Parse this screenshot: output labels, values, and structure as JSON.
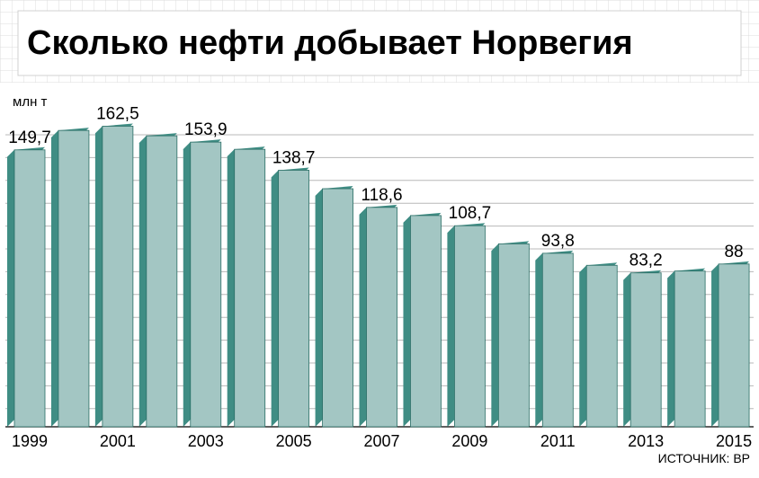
{
  "title": "Сколько нефти добывает Норвегия",
  "unit_label": "млн т",
  "source": "ИСТОЧНИК: BP",
  "colors": {
    "bar_face": "#a3c6c3",
    "bar_side": "#3f8d84",
    "bar_outline": "#2a6e66",
    "grid": "#b8b8b8",
    "background_grid": "#dcdcdc"
  },
  "chart_data": {
    "type": "bar",
    "title": "Сколько нефти добывает Норвегия",
    "ylabel": "млн т",
    "xlabel": "",
    "ylim": [
      0,
      170
    ],
    "grid": true,
    "categories": [
      "1999",
      "2000",
      "2001",
      "2002",
      "2003",
      "2004",
      "2005",
      "2006",
      "2007",
      "2008",
      "2009",
      "2010",
      "2011",
      "2012",
      "2013",
      "2014",
      "2015"
    ],
    "values": [
      149.7,
      160.2,
      162.5,
      157.3,
      153.9,
      150.0,
      138.7,
      128.7,
      118.6,
      114.2,
      108.7,
      98.9,
      93.8,
      87.3,
      83.2,
      84.2,
      88.0
    ],
    "value_labels": [
      "149,7",
      "",
      "162,5",
      "",
      "153,9",
      "",
      "138,7",
      "",
      "118,6",
      "",
      "108,7",
      "",
      "93,8",
      "",
      "83,2",
      "",
      "88"
    ],
    "tick_labels": [
      "1999",
      "",
      "2001",
      "",
      "2003",
      "",
      "2005",
      "",
      "2007",
      "",
      "2009",
      "",
      "2011",
      "",
      "2013",
      "",
      "2015"
    ]
  }
}
